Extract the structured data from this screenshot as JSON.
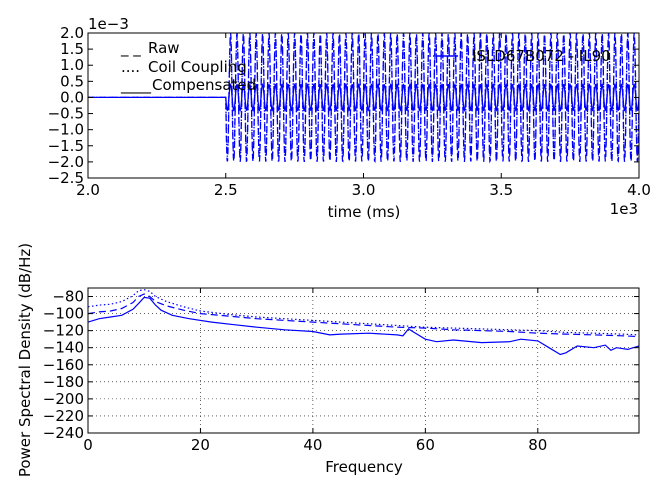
{
  "chart_data": [
    {
      "type": "line",
      "title": "",
      "xlabel": "time (ms)",
      "ylabel": "",
      "x_multiplier_label": "1e3",
      "y_multiplier_label": "1e−3",
      "xlim": [
        2.0,
        4.0
      ],
      "ylim": [
        -2.5,
        2.0
      ],
      "xticks": [
        "2.0",
        "2.5",
        "3.0",
        "3.5",
        "4.0"
      ],
      "yticks": [
        "2.0",
        "1.5",
        "1.0",
        "0.5",
        "0.0",
        "−0.5",
        "−1.0",
        "−1.5",
        "−2.0",
        "−2.5"
      ],
      "grid": false,
      "legend_placement": "top-left",
      "annotation": "ISLD67B072 - IL90",
      "series": [
        {
          "name": "Raw",
          "style": "dashed",
          "color": "#0000ff",
          "onset": 2.5,
          "frequency_per_unit": 43,
          "amplitude": 2.0
        },
        {
          "name": "Coil Coupling",
          "style": "dotted",
          "color": "#0000ff",
          "onset": 2.5,
          "frequency_per_unit": 43,
          "amplitude": 1.85
        },
        {
          "name": "Compensated",
          "style": "solid",
          "color": "#0000ff",
          "onset": 2.5,
          "frequency_per_unit": 43,
          "amplitude": 0.4
        }
      ]
    },
    {
      "type": "line",
      "title": "",
      "xlabel": "Frequency",
      "ylabel": "Power Spectral Density (dB/Hz)",
      "xlim": [
        0,
        98
      ],
      "ylim": [
        -240,
        -70
      ],
      "xticks": [
        "0",
        "20",
        "40",
        "60",
        "80"
      ],
      "yticks": [
        "−80",
        "−100",
        "−120",
        "−140",
        "−160",
        "−180",
        "−200",
        "−220",
        "−240"
      ],
      "grid": true,
      "series": [
        {
          "style": "dashed",
          "color": "#0000ff",
          "x": [
            0,
            2,
            4,
            6,
            8,
            9,
            10,
            11,
            12,
            14,
            17,
            20,
            25,
            30,
            35,
            40,
            45,
            50,
            55,
            60,
            65,
            70,
            75,
            80,
            85,
            90,
            95,
            98
          ],
          "values": [
            -100,
            -98,
            -97,
            -94,
            -87,
            -80,
            -77,
            -80,
            -86,
            -91,
            -96,
            -100,
            -103,
            -106,
            -108,
            -110,
            -112,
            -114,
            -116,
            -117,
            -119,
            -120,
            -121,
            -123,
            -124,
            -125,
            -126,
            -127
          ]
        },
        {
          "style": "dotted",
          "color": "#0000ff",
          "x": [
            0,
            2,
            4,
            6,
            8,
            9,
            10,
            11,
            12,
            14,
            17,
            20,
            25,
            30,
            35,
            40,
            45,
            50,
            55,
            60,
            65,
            70,
            75,
            80,
            85,
            90,
            95,
            98
          ],
          "values": [
            -92,
            -90,
            -89,
            -86,
            -79,
            -73,
            -72,
            -74,
            -80,
            -86,
            -92,
            -97,
            -101,
            -104,
            -106,
            -108,
            -110,
            -112,
            -114,
            -116,
            -117,
            -118,
            -119,
            -120,
            -122,
            -123,
            -124,
            -125
          ]
        },
        {
          "style": "solid",
          "color": "#0000ff",
          "x": [
            0,
            2,
            4,
            6,
            8,
            9,
            10,
            11,
            12,
            13,
            15,
            18,
            22,
            26,
            30,
            35,
            40,
            43,
            45,
            50,
            55,
            56,
            57,
            58,
            60,
            62,
            65,
            70,
            75,
            77,
            80,
            82,
            84,
            85,
            87,
            90,
            92,
            93,
            94,
            96,
            98
          ],
          "values": [
            -110,
            -106,
            -104,
            -102,
            -95,
            -88,
            -81,
            -82,
            -90,
            -96,
            -102,
            -106,
            -110,
            -113,
            -116,
            -119,
            -121,
            -125,
            -124,
            -123,
            -125,
            -126,
            -118,
            -122,
            -130,
            -133,
            -131,
            -134,
            -133,
            -130,
            -132,
            -140,
            -148,
            -146,
            -138,
            -140,
            -137,
            -143,
            -140,
            -142,
            -138
          ]
        }
      ]
    }
  ]
}
